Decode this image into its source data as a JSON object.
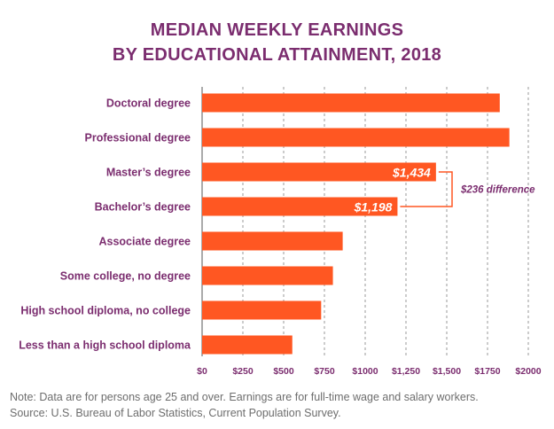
{
  "header": {
    "title_line1": "MEDIAN WEEKLY EARNINGS",
    "title_line2": "BY EDUCATIONAL ATTAINMENT, 2018"
  },
  "chart_data": {
    "type": "bar",
    "orientation": "horizontal",
    "categories": [
      "Doctoral degree",
      "Professional degree",
      "Master’s degree",
      "Bachelor’s degree",
      "Associate degree",
      "Some college, no degree",
      "High school diploma, no college",
      "Less than a high school diploma"
    ],
    "values": [
      1825,
      1884,
      1434,
      1198,
      862,
      802,
      730,
      553
    ],
    "data_labels": {
      "2": "$1,434",
      "3": "$1,198"
    },
    "xlim": [
      0,
      2000
    ],
    "x_ticks": [
      0,
      250,
      500,
      750,
      1000,
      1250,
      1500,
      1750,
      2000
    ],
    "x_tick_labels": [
      "$0",
      "$250",
      "$500",
      "$750",
      "$1000",
      "$1,250",
      "$1,500",
      "$1750",
      "$2000"
    ],
    "grid": "vertical dashed",
    "annotation": {
      "text": "$236 difference",
      "between_categories": [
        2,
        3
      ]
    },
    "colors": {
      "bar": "#ff5722",
      "category_label": "#7b2d6f",
      "title": "#7b2d6f",
      "annotation": "#7b2d6f",
      "tick_label": "#7b2d6f",
      "bracket": "#ff5722"
    }
  },
  "footer": {
    "note": "Note: Data are for persons age 25 and over. Earnings are for full-time wage and salary workers.",
    "source": "Source: U.S. Bureau of Labor Statistics, Current Population Survey."
  }
}
